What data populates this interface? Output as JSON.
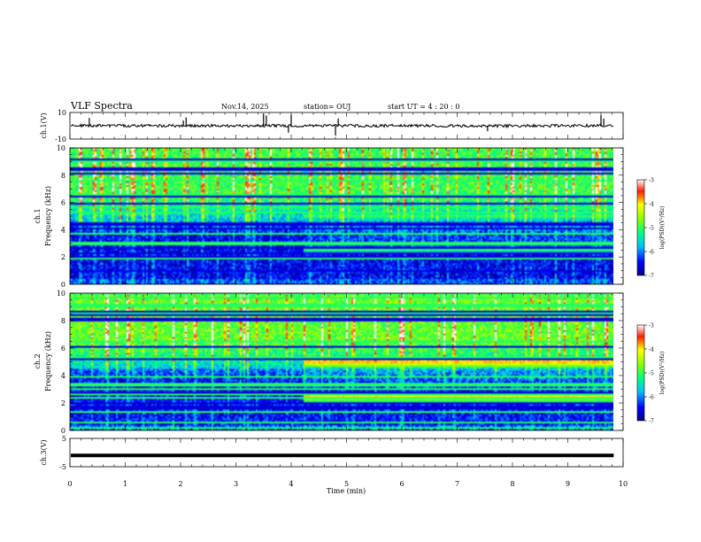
{
  "header": {
    "title": "VLF Spectra",
    "date": "Nov.14, 2025",
    "station": "station= OUJ",
    "start_ut": "start  UT =   4 : 20 : 0"
  },
  "chart_data": [
    {
      "type": "line",
      "panel": "ch1-waveform",
      "ylabel": "ch.1(V)",
      "ylim": [
        -10,
        10
      ],
      "yticks": [
        "10",
        "-10"
      ],
      "baseline": 0,
      "spike_times_min": [
        0.35,
        2.05,
        2.1,
        3.5,
        3.55,
        3.95,
        4.0,
        4.8,
        4.85,
        7.55,
        9.6,
        9.65
      ]
    },
    {
      "type": "heatmap",
      "panel": "ch1-spectrogram",
      "ylabel_line1": "ch.1",
      "ylabel_line2": "Frequency (kHz)",
      "ylim": [
        0,
        10
      ],
      "yticks": [
        "0",
        "2",
        "4",
        "6",
        "8",
        "10"
      ],
      "xlim": [
        0,
        10
      ],
      "data_end_min": 9.83,
      "band_onset_min": 4.2,
      "band_freqs_khz": [
        5.0,
        2.5
      ],
      "colorbar": {
        "label": "log(PSD)(V²/Hz)",
        "range": [
          -7,
          -3
        ],
        "ticks": [
          "-3",
          "-4",
          "-5",
          "-6",
          "-7"
        ]
      }
    },
    {
      "type": "heatmap",
      "panel": "ch2-spectrogram",
      "ylabel_line1": "ch.2",
      "ylabel_line2": "Frequency (kHz)",
      "ylim": [
        0,
        10
      ],
      "yticks": [
        "0",
        "2",
        "4",
        "6",
        "8",
        "10"
      ],
      "xlim": [
        0,
        10
      ],
      "data_end_min": 9.83,
      "band_onset_min": 4.2,
      "band_freqs_khz": [
        5.0,
        2.4
      ],
      "colorbar": {
        "label": "log(PSD)(V²/Hz)",
        "range": [
          -7,
          -3
        ],
        "ticks": [
          "-3",
          "-4",
          "-5",
          "-6",
          "-7"
        ]
      }
    },
    {
      "type": "line",
      "panel": "ch3-waveform",
      "ylabel": "ch.3(V)",
      "ylim": [
        -5,
        5
      ],
      "yticks": [
        "5",
        "-5"
      ],
      "level": -1,
      "xlabel": "Time (min)",
      "xlim": [
        0,
        10
      ],
      "xticks": [
        "0",
        "1",
        "2",
        "3",
        "4",
        "5",
        "6",
        "7",
        "8",
        "9",
        "10"
      ]
    }
  ],
  "colors": {
    "axis": "#000000",
    "background": "#ffffff"
  }
}
